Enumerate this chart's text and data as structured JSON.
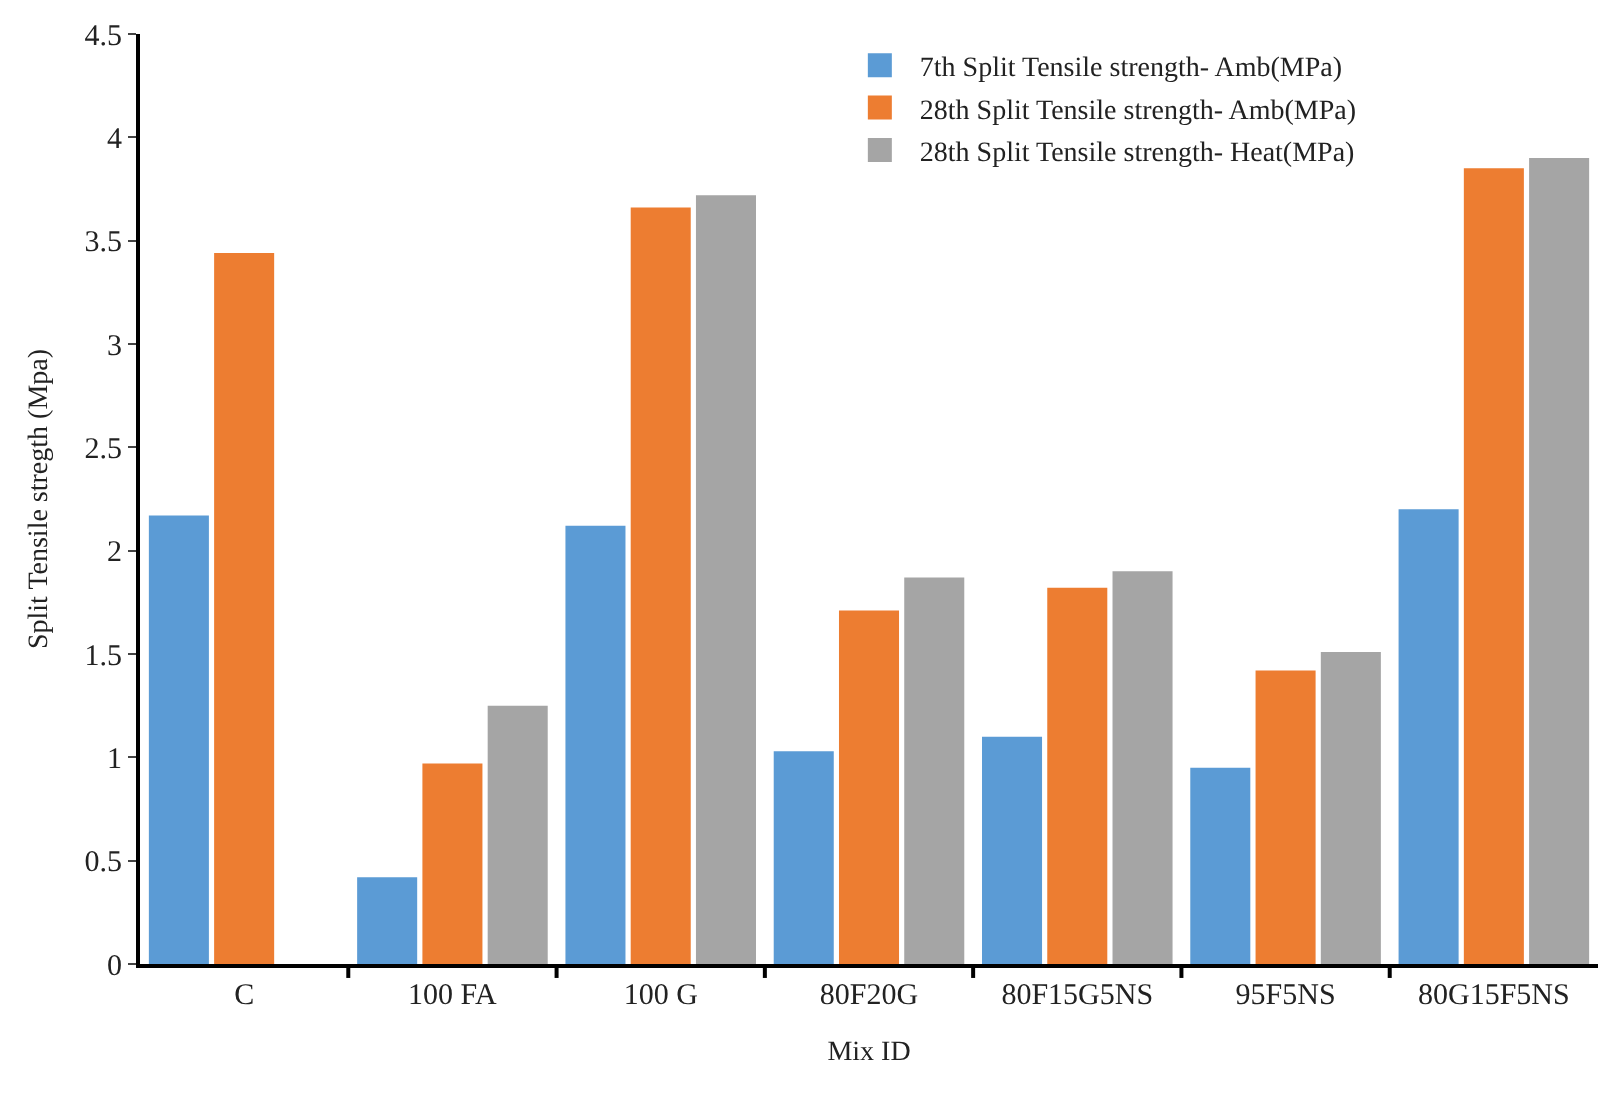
{
  "chart_data": {
    "type": "bar",
    "xlabel": "Mix ID",
    "ylabel": "Split Tensile stregth (Mpa)",
    "categories": [
      "C",
      "100 FA",
      "100 G",
      "80F20G",
      "80F15G5NS",
      "95F5NS",
      "80G15F5NS"
    ],
    "series": [
      {
        "name": "7th Split Tensile strength- Amb(MPa)",
        "color": "#5b9bd5",
        "values": [
          2.17,
          0.42,
          2.12,
          1.03,
          1.1,
          0.95,
          2.2
        ]
      },
      {
        "name": "28th Split Tensile strength- Amb(MPa)",
        "color": "#ed7d31",
        "values": [
          3.44,
          0.97,
          3.66,
          1.71,
          1.82,
          1.42,
          3.85
        ]
      },
      {
        "name": "28th Split Tensile strength- Heat(MPa)",
        "color": "#a5a5a5",
        "values": [
          null,
          1.25,
          3.72,
          1.87,
          1.9,
          1.51,
          3.9
        ]
      }
    ],
    "ylim": [
      0,
      4.5
    ],
    "yticks": [
      0,
      0.5,
      1,
      1.5,
      2,
      2.5,
      3,
      3.5,
      4,
      4.5
    ],
    "grid": false,
    "legend": "top right"
  }
}
